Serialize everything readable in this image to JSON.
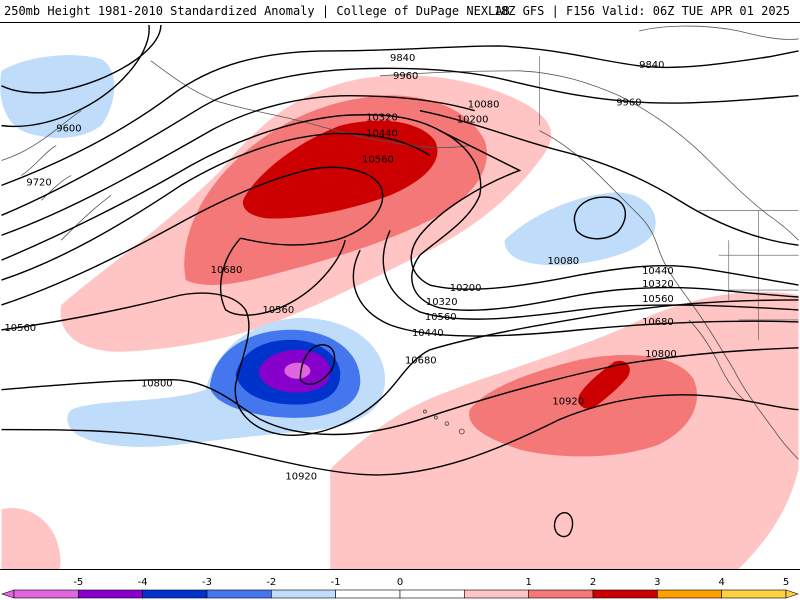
{
  "header": {
    "left": "250mb Height 1981-2010 Standardized Anomaly | College of DuPage NEXLAB",
    "right": "18Z GFS | F156 Valid: 06Z TUE APR 01 2025"
  },
  "colors": {
    "n5": "#e066e0",
    "n4": "#8800cc",
    "n3": "#0033cc",
    "n2": "#4477ee",
    "n1": "#bfdcfa",
    "zero": "#ffffff",
    "p1": "#ffc4c4",
    "p2": "#f47878",
    "p3": "#cc0000",
    "p4": "#ffa000",
    "p5": "#ffd040"
  },
  "height_contour_labels": [
    "9840",
    "9840",
    "9960",
    "9960",
    "9600",
    "9720",
    "10080",
    "10200",
    "10320",
    "10440",
    "10560",
    "10680",
    "10560",
    "10080",
    "10200",
    "10320",
    "10440",
    "10560",
    "10320",
    "10440",
    "10560",
    "10680",
    "10800",
    "10800",
    "10680",
    "10920",
    "10920",
    "10560"
  ],
  "colorbar": {
    "ticks": [
      "-5",
      "-4",
      "-3",
      "-2",
      "-1",
      "0",
      "1",
      "2",
      "3",
      "4",
      "5"
    ]
  }
}
